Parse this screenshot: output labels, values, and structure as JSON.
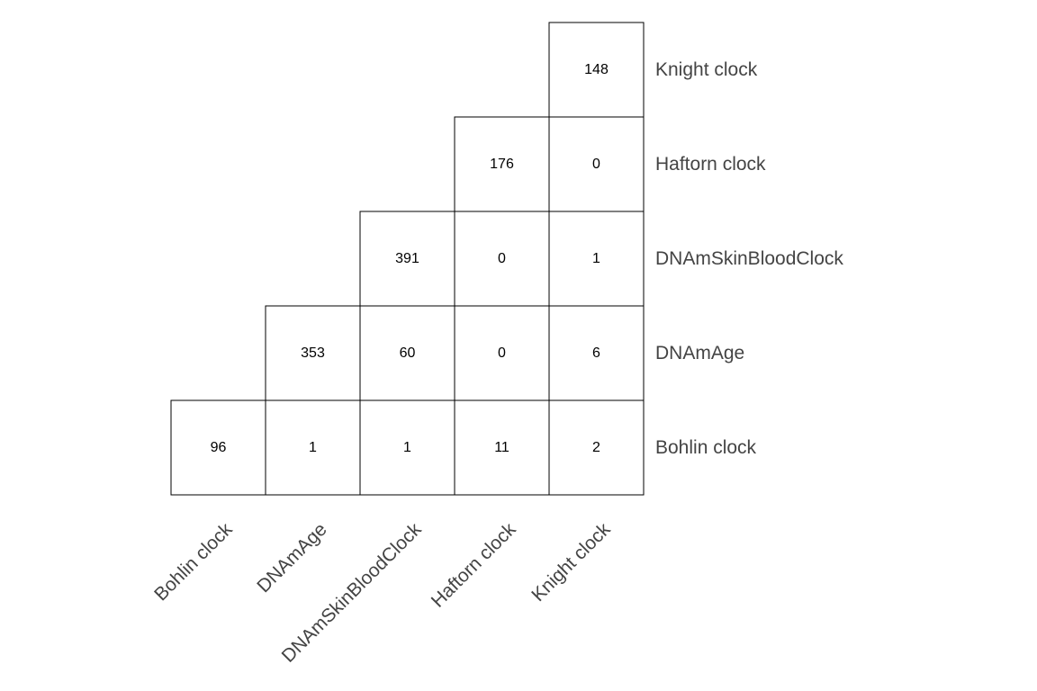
{
  "chart_data": {
    "type": "table",
    "title": "",
    "xlabel": "",
    "ylabel": "",
    "categories": [
      "Bohlin clock",
      "DNAmAge",
      "DNAmSkinBloodClock",
      "Haftorn clock",
      "Knight clock"
    ],
    "rows": [
      {
        "label": "Knight clock",
        "values": [
          null,
          null,
          null,
          null,
          148
        ]
      },
      {
        "label": "Haftorn clock",
        "values": [
          null,
          null,
          null,
          176,
          0
        ]
      },
      {
        "label": "DNAmSkinBloodClock",
        "values": [
          null,
          null,
          391,
          0,
          1
        ]
      },
      {
        "label": "DNAmAge",
        "values": [
          null,
          353,
          60,
          0,
          6
        ]
      },
      {
        "label": "Bohlin clock",
        "values": [
          96,
          1,
          1,
          11,
          2
        ]
      }
    ],
    "grid": true,
    "colors": {
      "line": "#000000",
      "label": "#444444",
      "value": "#000000"
    }
  }
}
